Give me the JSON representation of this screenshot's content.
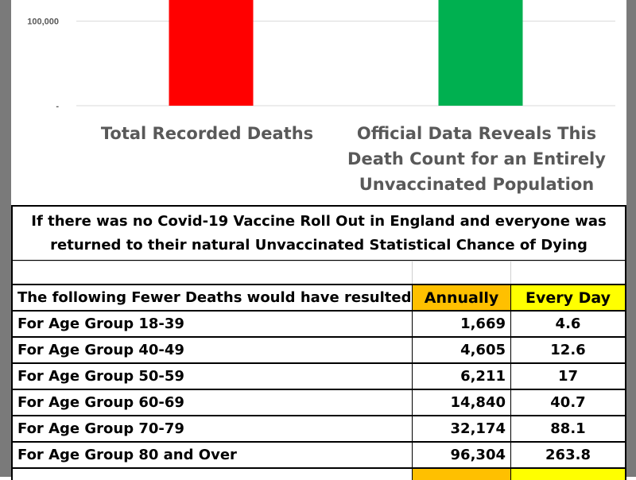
{
  "chart_data": {
    "type": "bar",
    "categories": [
      [
        "Total Recorded Deaths"
      ],
      [
        "Official Data Reveals This",
        "Death Count for an Entirely",
        "Unvaccinated Population"
      ]
    ],
    "y_ticks": [
      {
        "value": 0,
        "label": "-"
      },
      {
        "value": 100000,
        "label": "100,000"
      }
    ],
    "bars": [
      {
        "category_index": 0,
        "color": "#ff0000"
      },
      {
        "category_index": 1,
        "color": "#00b050"
      }
    ],
    "visible_range": [
      0,
      125000
    ],
    "grid": true,
    "title": "",
    "xlabel": "",
    "ylabel": ""
  },
  "table": {
    "headline": [
      "If there was no Covid-19 Vaccine Roll Out in England and everyone was",
      "returned to their natural Unvaccinated Statistical Chance of Dying"
    ],
    "header": {
      "label": "The following Fewer Deaths would have resulted",
      "annually": "Annually",
      "every_day": "Every Day"
    },
    "rows": [
      {
        "label": "For Age Group 18-39",
        "annually": "1,669",
        "every_day": "4.6"
      },
      {
        "label": "For Age Group 40-49",
        "annually": "4,605",
        "every_day": "12.6"
      },
      {
        "label": "For Age Group 50-59",
        "annually": "6,211",
        "every_day": "17"
      },
      {
        "label": "For Age Group 60-69",
        "annually": "14,840",
        "every_day": "40.7"
      },
      {
        "label": "For Age Group 70-79",
        "annually": "32,174",
        "every_day": "88.1"
      },
      {
        "label": "For Age Group 80 and Over",
        "annually": "96,304",
        "every_day": "263.8"
      }
    ]
  },
  "colors": {
    "frame": "#7a7a7a",
    "annually_header": "#ffc000",
    "every_day_header": "#ffff00",
    "axis_text": "#595959",
    "gridline": "#d9d9d9"
  }
}
